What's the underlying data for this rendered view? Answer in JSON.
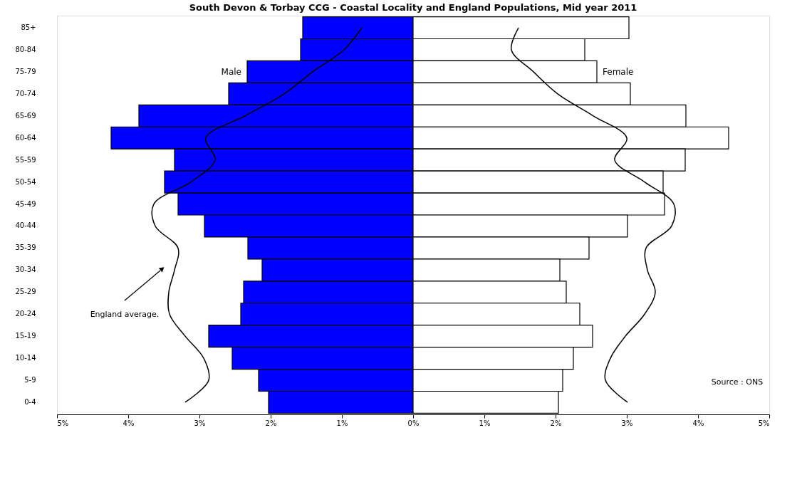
{
  "chart_data": {
    "type": "bar",
    "orientation": "horizontal",
    "title": "South Devon & Torbay CCG - Coastal Locality and England Populations, Mid year 2011",
    "categories": [
      "85+",
      "80-84",
      "75-79",
      "70-74",
      "65-69",
      "60-64",
      "55-59",
      "50-54",
      "45-49",
      "40-44",
      "35-39",
      "30-34",
      "25-29",
      "20-24",
      "15-19",
      "10-14",
      "5-9",
      "0-4"
    ],
    "series": [
      {
        "name": "Male",
        "color": "#0000ff",
        "values": [
          -1.55,
          -1.58,
          -2.33,
          -2.59,
          -3.85,
          -4.24,
          -3.35,
          -3.49,
          -3.3,
          -2.93,
          -2.32,
          -2.12,
          -2.38,
          -2.42,
          -2.87,
          -2.54,
          -2.17,
          -2.03
        ]
      },
      {
        "name": "Female",
        "color": "#ffffff",
        "values": [
          3.03,
          2.41,
          2.58,
          3.05,
          3.83,
          4.43,
          3.82,
          3.51,
          3.53,
          3.01,
          2.47,
          2.06,
          2.15,
          2.34,
          2.52,
          2.25,
          2.1,
          2.04
        ]
      },
      {
        "type": "line",
        "color": "#000000",
        "values": [
          -0.72,
          -0.97,
          -1.41,
          -1.81,
          -2.36,
          -2.91,
          -2.78,
          -3.12,
          -3.64,
          -3.62,
          -3.3,
          -3.35,
          -3.43,
          -3.42,
          -3.2,
          -2.94,
          -2.87,
          -3.2
        ]
      },
      {
        "type": "line",
        "color": "#000000",
        "values": [
          1.48,
          1.38,
          1.69,
          2.03,
          2.53,
          3.0,
          2.83,
          3.25,
          3.66,
          3.63,
          3.27,
          3.29,
          3.4,
          3.25,
          2.98,
          2.77,
          2.7,
          3.01
        ]
      }
    ],
    "xlim": [
      -5,
      5
    ],
    "xticks": [
      {
        "value": -5,
        "label": "5%"
      },
      {
        "value": -4,
        "label": "4%"
      },
      {
        "value": -3,
        "label": "3%"
      },
      {
        "value": -2,
        "label": "2%"
      },
      {
        "value": -1,
        "label": "1%"
      },
      {
        "value": 0,
        "label": "0%"
      },
      {
        "value": 1,
        "label": "1%"
      },
      {
        "value": 2,
        "label": "2%"
      },
      {
        "value": 3,
        "label": "3%"
      },
      {
        "value": 4,
        "label": "4%"
      },
      {
        "value": 5,
        "label": "5%"
      }
    ],
    "grid": false,
    "legend": false,
    "stacked": true,
    "annotations": [
      "England average.",
      "Source : ONS"
    ]
  }
}
